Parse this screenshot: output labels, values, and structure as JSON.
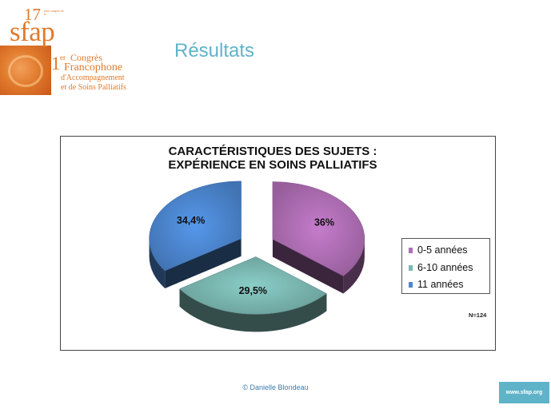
{
  "logo": {
    "edition": "17",
    "edition_small": "ème congrès de la",
    "brand": "sfap",
    "ordinal": "1",
    "ordinal_suffix": "er",
    "line1": "Congrès",
    "line2": "Francophone",
    "line3": "d'Accompagnement",
    "line4": "et de Soins Palliatifs"
  },
  "slide": {
    "title": "Résultats",
    "footer": "© Danielle  Blondeau",
    "badge": "www.sfap.org"
  },
  "chart_data": {
    "type": "pie",
    "title_line1": "CARACTÉRISTIQUES  DES SUJETS :",
    "title_line2": "EXPÉRIENCE EN SOINS PALLIATIFS",
    "slices": [
      {
        "name": "0-5 années",
        "value": 36,
        "label": "36%",
        "color": "#b06fb5"
      },
      {
        "name": "6-10 années",
        "value": 29.5,
        "label": "29,5%",
        "color": "#7bb8b2"
      },
      {
        "name": "11 années",
        "value": 34.4,
        "label": "34,4%",
        "color": "#4d87d1"
      }
    ],
    "note": "N=124",
    "legend_position": "right",
    "exploded": true,
    "three_d": true
  }
}
